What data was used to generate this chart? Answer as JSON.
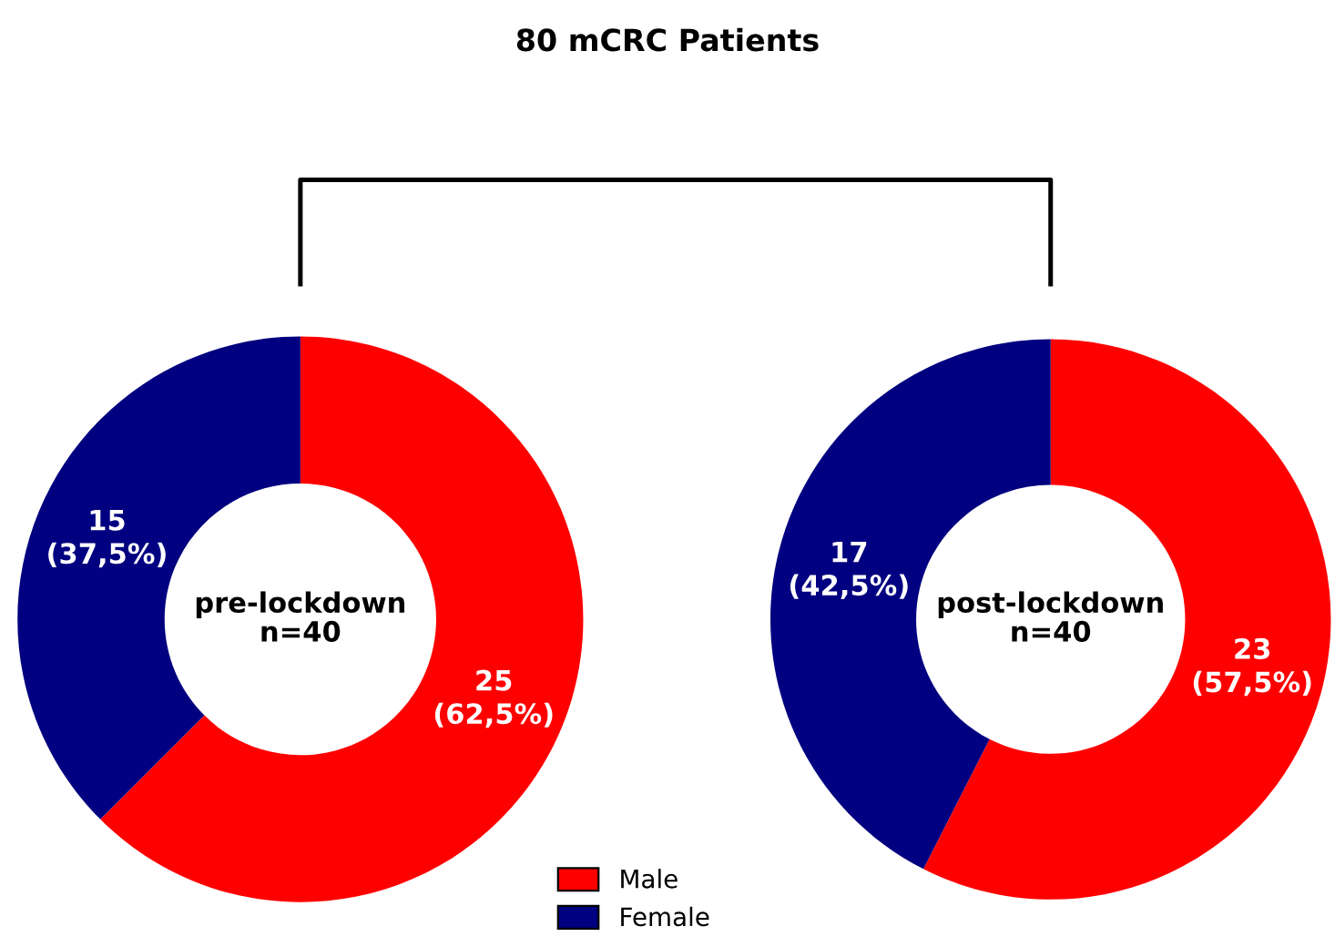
{
  "chart_data": [
    {
      "type": "donut",
      "title": "80 mCRC Patients",
      "categories": [
        "Male",
        "Female"
      ],
      "values": [
        25,
        15
      ],
      "colors": [
        "#ff0000",
        "#000080"
      ],
      "value_labels": [
        "25\n(62,5%)",
        "15\n(37,5%)"
      ],
      "annotations": [
        "pre-lockdown\nn=40"
      ],
      "legend": "bottom"
    },
    {
      "type": "donut",
      "categories": [
        null,
        null
      ],
      "values": [
        23,
        17
      ],
      "colors": [
        "#ff0000",
        "#000080"
      ],
      "value_labels": [
        "23\n(57,5%)",
        "17\n(42,5%)"
      ],
      "annotations": [
        "post-lockdown\nn=40"
      ]
    }
  ]
}
